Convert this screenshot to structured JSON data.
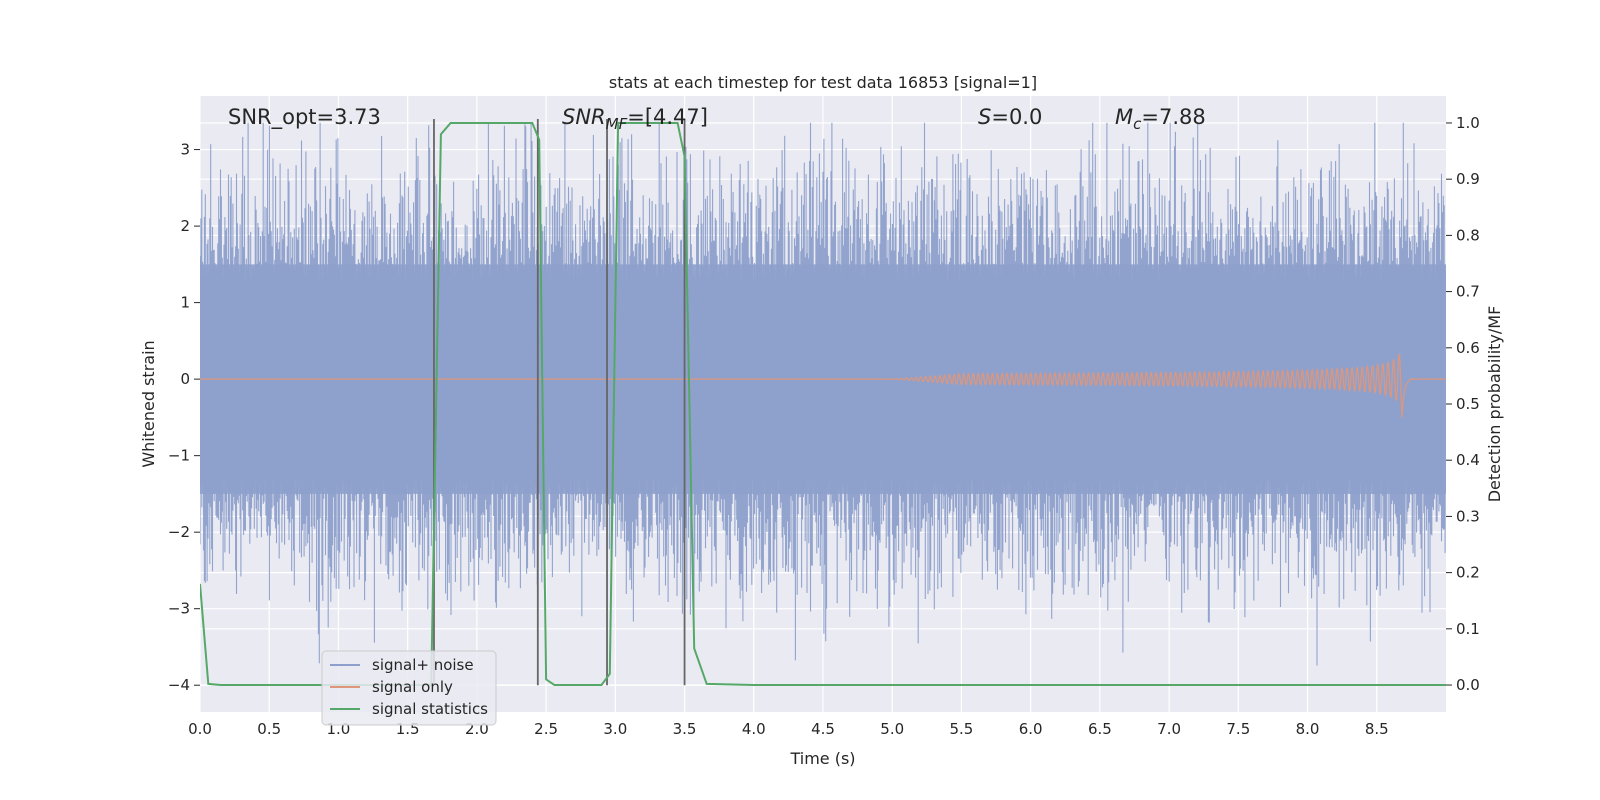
{
  "chart_data": {
    "type": "line",
    "title": "stats at each timestep for test data 16853 [signal=1]",
    "xlabel": "Time (s)",
    "ylabel_left": "Whitened strain",
    "ylabel_right": "Detection probability/MF",
    "xlim": [
      0.0,
      9.0
    ],
    "ylim_left": [
      -4.35,
      3.7
    ],
    "ylim_right": [
      -0.048,
      1.048
    ],
    "x_ticks": [
      "0.0",
      "0.5",
      "1.0",
      "1.5",
      "2.0",
      "2.5",
      "3.0",
      "3.5",
      "4.0",
      "4.5",
      "5.0",
      "5.5",
      "6.0",
      "6.5",
      "7.0",
      "7.5",
      "8.0",
      "8.5"
    ],
    "y_ticks_left": [
      "3",
      "2",
      "1",
      "0",
      "−1",
      "−2",
      "−3",
      "−4"
    ],
    "y_ticks_right": [
      "1.0",
      "0.9",
      "0.8",
      "0.7",
      "0.6",
      "0.5",
      "0.4",
      "0.3",
      "0.2",
      "0.1",
      "0.0"
    ],
    "grid": true,
    "legend_placement": "lower-left",
    "annotations": {
      "snr_opt": "SNR_opt=3.73",
      "snr_mf_main": "SNR",
      "snr_mf_sub": "MF",
      "snr_mf_val": "=[4.47]",
      "s_main": "S",
      "s_val": "=0.0",
      "mc_main": "M",
      "mc_sub": "c",
      "mc_val": "=7.88"
    },
    "series": [
      {
        "name": "signal+ noise",
        "color": "#8da0cb",
        "axis": "left",
        "description_values": "noise band approx ±1.5 with peaks to ±3",
        "envelope": {
          "core": [
            -1.5,
            1.5
          ],
          "peak_max": 3.35,
          "peak_min": -4.0
        }
      },
      {
        "name": "signal only",
        "color": "#e0967a",
        "axis": "left",
        "chirp": {
          "start": 5.0,
          "merger": 8.68,
          "peak_amplitude": 0.42
        }
      },
      {
        "name": "signal statistics",
        "color": "#55a868",
        "axis": "right",
        "x": [
          0.0,
          0.06,
          0.15,
          0.5,
          1.0,
          1.5,
          1.67,
          1.74,
          1.81,
          2.0,
          2.4,
          2.45,
          2.5,
          2.56,
          2.7,
          2.9,
          2.96,
          3.02,
          3.2,
          3.45,
          3.5,
          3.57,
          3.66,
          4.0,
          5.0,
          6.0,
          7.0,
          8.0,
          9.0
        ],
        "y": [
          0.18,
          0.002,
          0.0,
          0.0,
          0.0,
          0.0,
          0.0,
          0.98,
          1.0,
          1.0,
          1.0,
          0.97,
          0.01,
          0.0,
          0.0,
          0.0,
          0.02,
          1.0,
          1.0,
          1.0,
          0.94,
          0.065,
          0.002,
          0.0,
          0.0,
          0.0,
          0.0,
          0.0,
          0.0
        ]
      }
    ],
    "vertical_markers": [
      1.69,
      2.44,
      2.94,
      3.5
    ]
  }
}
